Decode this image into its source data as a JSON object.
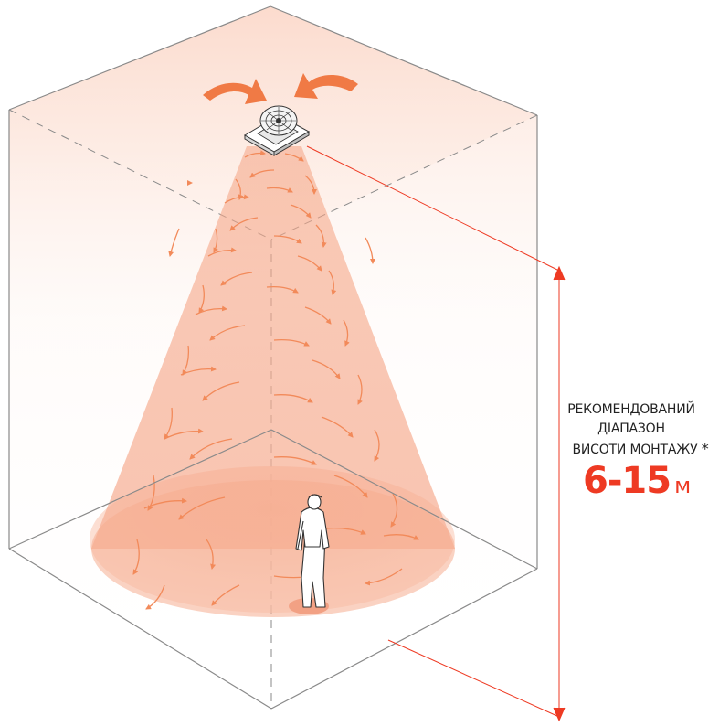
{
  "annotation": {
    "line1": "РЕКОМЕНДОВАНИЙ",
    "line2": "ДІАПАЗОН",
    "line3": "ВИСОТИ МОНТАЖУ",
    "asterisk": "*",
    "range_value": "6-15",
    "range_unit": "м"
  },
  "colors": {
    "accent": "#ee3a23",
    "airflow_arrow": "#f28a5a",
    "cone_fill": "#f7a07e",
    "room_edge": "#8a8a8a"
  },
  "icons": [
    "ceiling-fan-icon",
    "intake-arrow-left-icon",
    "intake-arrow-right-icon",
    "person-figure-icon"
  ]
}
